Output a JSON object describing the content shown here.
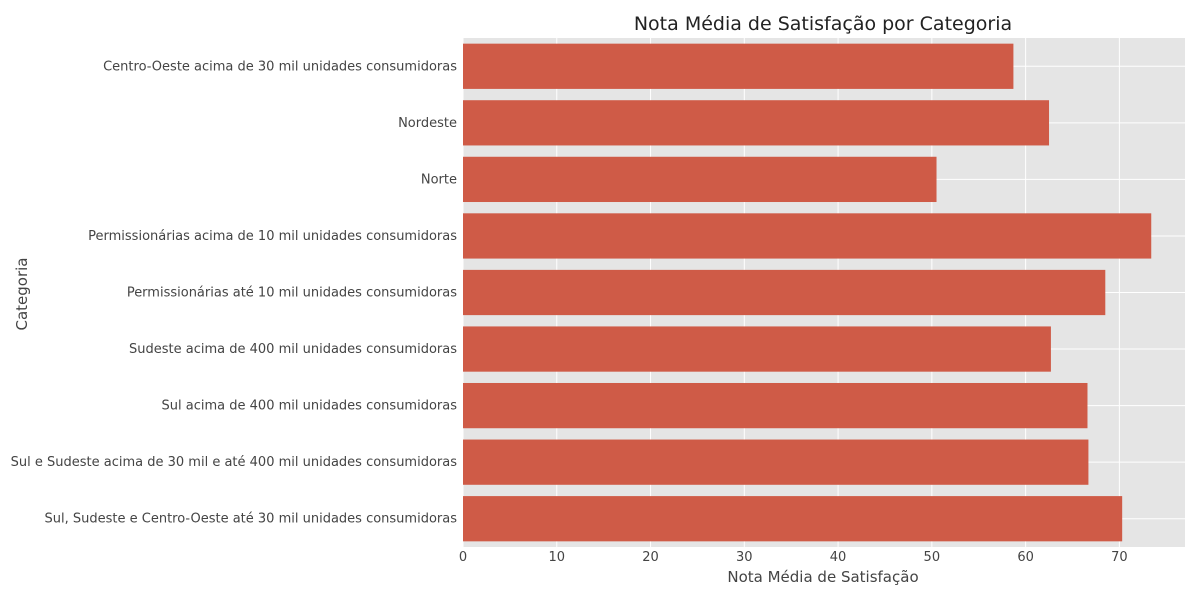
{
  "chart_data": {
    "type": "bar",
    "orientation": "horizontal",
    "title": "Nota Média de Satisfação por Categoria",
    "xlabel": "Nota Média de Satisfação",
    "ylabel": "Categoria",
    "xlim": [
      0,
      77
    ],
    "xticks": [
      0,
      10,
      20,
      30,
      40,
      50,
      60,
      70
    ],
    "grid": true,
    "categories": [
      "Centro-Oeste acima de 30 mil unidades consumidoras",
      "Nordeste",
      "Norte",
      "Permissionárias acima de 10 mil unidades consumidoras",
      "Permissionárias até 10 mil unidades consumidoras",
      "Sudeste acima de 400 mil unidades consumidoras",
      "Sul acima de 400 mil unidades consumidoras",
      "Sul e Sudeste acima de 30 mil e até 400 mil unidades consumidoras",
      "Sul, Sudeste e Centro-Oeste até 30 mil unidades consumidoras"
    ],
    "values": [
      58.7,
      62.5,
      50.5,
      73.4,
      68.5,
      62.7,
      66.6,
      66.7,
      70.3
    ],
    "colors": {
      "bar": "#cf5b47",
      "plot_background": "#e5e5e5",
      "grid": "#ffffff"
    }
  }
}
